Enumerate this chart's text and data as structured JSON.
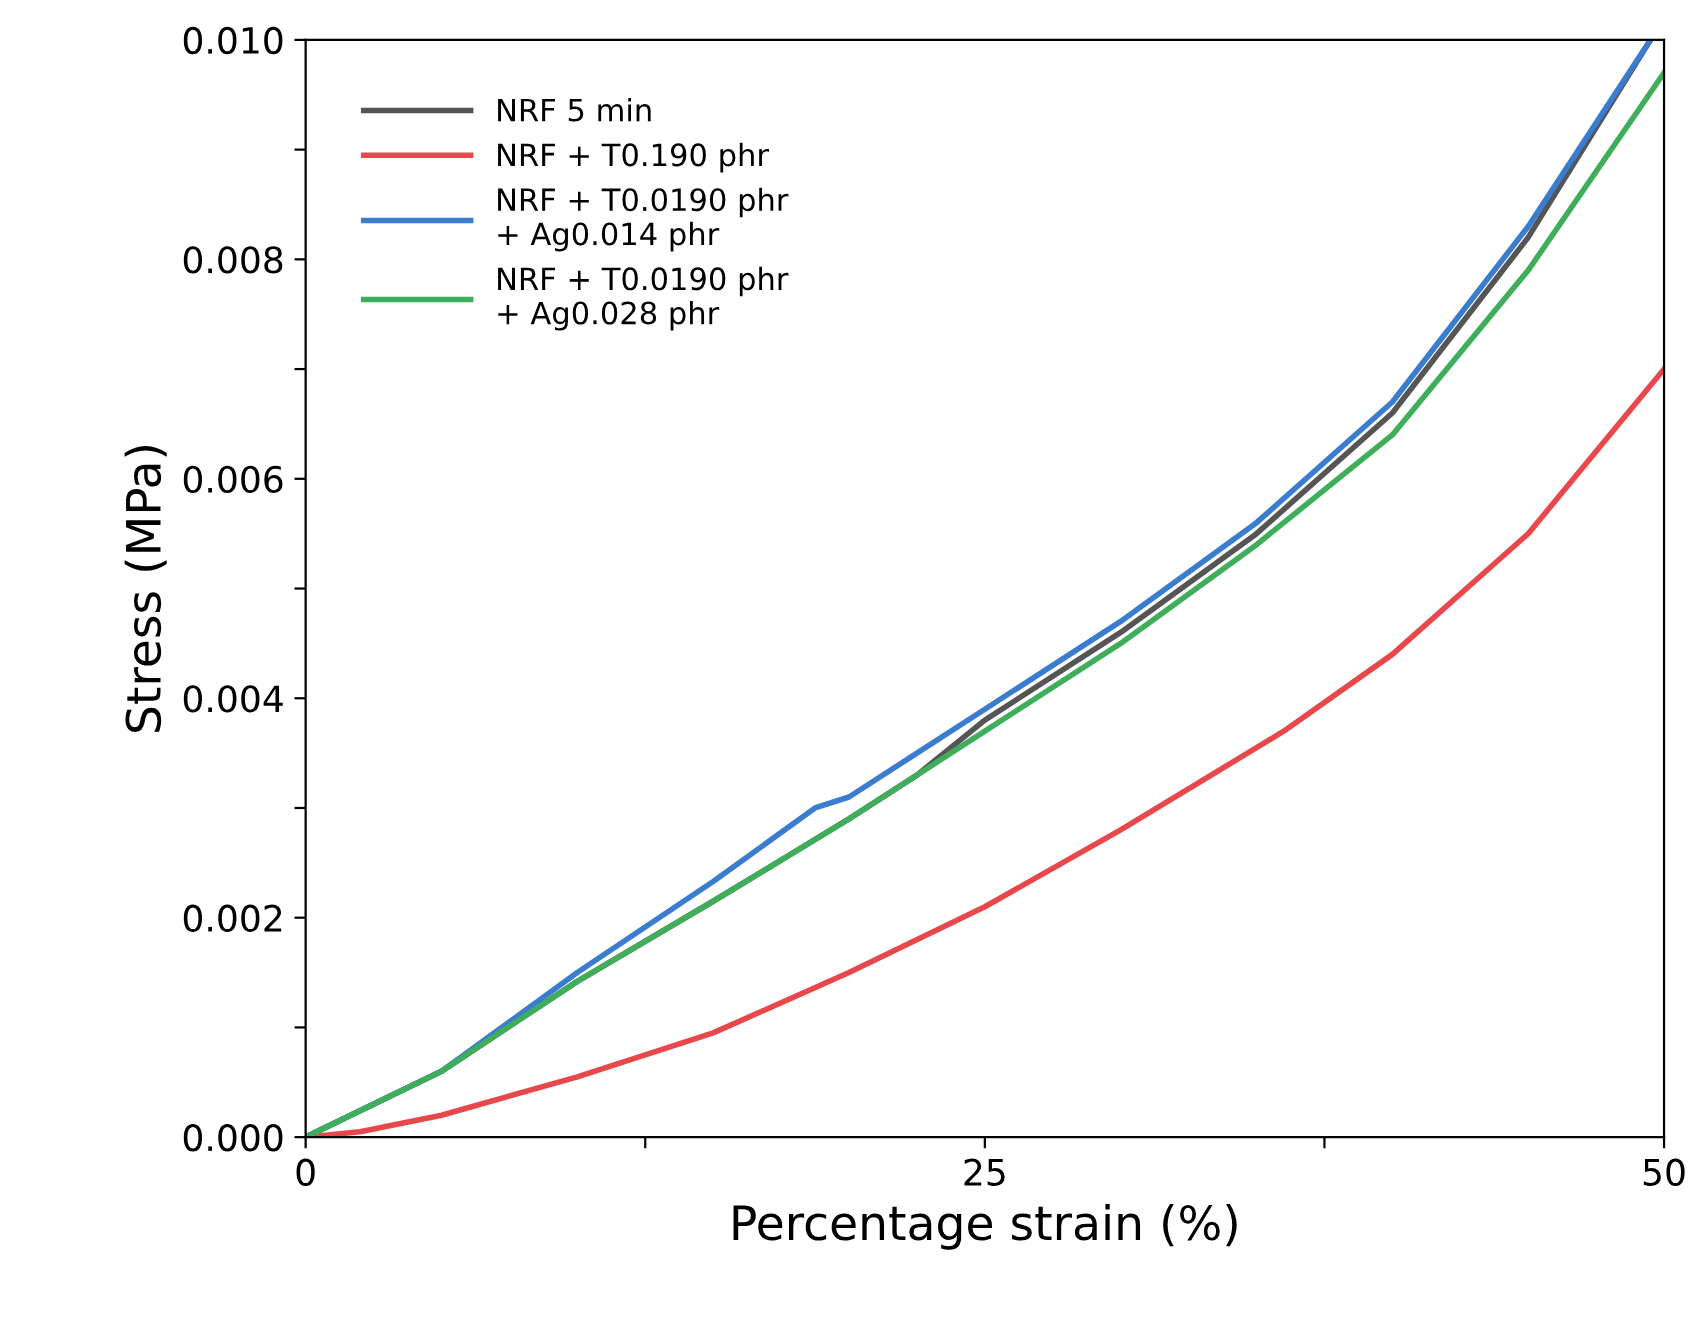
{
  "chart_data": {
    "type": "line",
    "xlabel": "Percentage strain (%)",
    "ylabel": "Stress (MPa)",
    "xlim": [
      0,
      50
    ],
    "xticks": [
      0,
      {
        "value": 12.5,
        "label": null
      },
      25,
      {
        "value": 37.5,
        "label": null
      },
      50
    ],
    "ylim": [
      0,
      0.01
    ],
    "yticks": [
      {
        "value": 0,
        "label": "0.000"
      },
      {
        "value": 0.001,
        "label": null
      },
      {
        "value": 0.002,
        "label": "0.002"
      },
      {
        "value": 0.003,
        "label": null
      },
      {
        "value": 0.004,
        "label": "0.004"
      },
      {
        "value": 0.005,
        "label": null
      },
      {
        "value": 0.006,
        "label": "0.006"
      },
      {
        "value": 0.007,
        "label": null
      },
      {
        "value": 0.008,
        "label": "0.008"
      },
      {
        "value": 0.009,
        "label": null
      },
      {
        "value": 0.01,
        "label": "0.010"
      }
    ],
    "grid": false,
    "legend": "top left",
    "marker": "none",
    "line_style": "solid",
    "series": [
      {
        "name": "NRF 5 min",
        "color": "#555555",
        "x": [
          0,
          5,
          10,
          15,
          20,
          22.5,
          25,
          30,
          35,
          40,
          45,
          49.5
        ],
        "values": [
          0,
          0.0006,
          0.00142,
          0.00215,
          0.0029,
          0.0033,
          0.0038,
          0.0046,
          0.0055,
          0.0066,
          0.0082,
          0.01
        ]
      },
      {
        "name": "NRF + T0.190 phr",
        "color": "#e8474c",
        "x": [
          0,
          2,
          5,
          10,
          15,
          20,
          25,
          30,
          34,
          36,
          40,
          45,
          50
        ],
        "values": [
          0,
          5e-05,
          0.0002,
          0.00055,
          0.00095,
          0.0015,
          0.0021,
          0.0028,
          0.0034,
          0.0037,
          0.0044,
          0.0055,
          0.007
        ]
      },
      {
        "name": "NRF + T0.0190 phr\n+ Ag0.014 phr",
        "color": "#3a7dd0",
        "x": [
          0,
          5,
          10,
          15,
          18.75,
          20,
          22.5,
          25,
          30,
          35,
          40,
          45,
          49.5
        ],
        "values": [
          0,
          0.0006,
          0.0015,
          0.00233,
          0.003,
          0.0031,
          0.0035,
          0.0039,
          0.0047,
          0.0056,
          0.0067,
          0.0083,
          0.01
        ]
      },
      {
        "name": "NRF + T0.0190 phr\n+ Ag0.028 phr",
        "color": "#3fae5a",
        "x": [
          0,
          5,
          10,
          15,
          20,
          22.5,
          25,
          30,
          35,
          40,
          45,
          50
        ],
        "values": [
          0,
          0.0006,
          0.00142,
          0.00215,
          0.0029,
          0.0033,
          0.0037,
          0.0045,
          0.0054,
          0.0064,
          0.0079,
          0.0097
        ]
      }
    ]
  }
}
